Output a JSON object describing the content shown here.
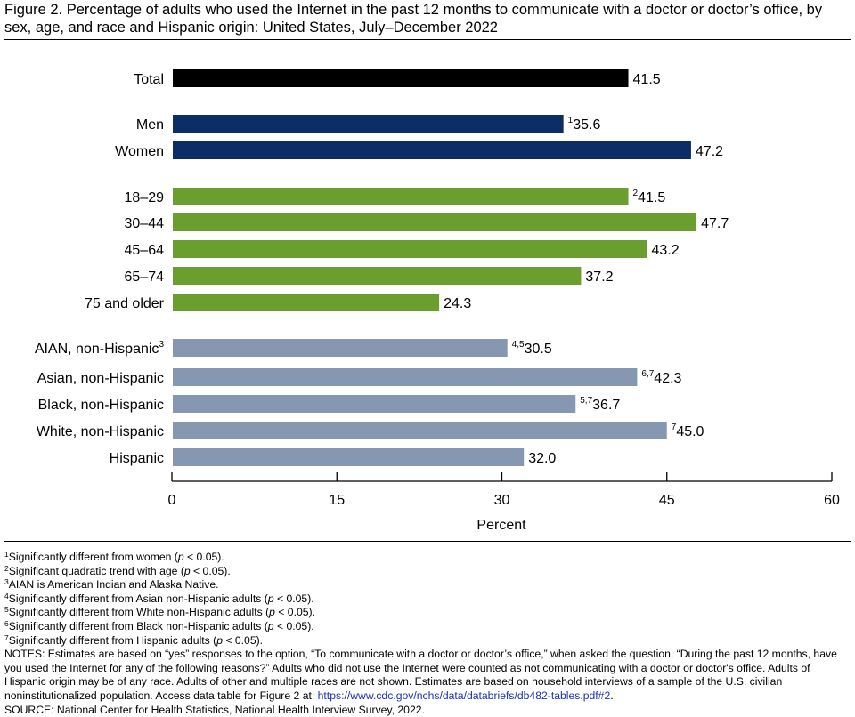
{
  "title": "Figure 2. Percentage of adults who used the Internet in the past 12 months to communicate with a doctor or doctor’s office, by sex, age, and race and Hispanic origin: United States, July–December 2022",
  "colors": {
    "total": "#000000",
    "sex": "#0d2d66",
    "age": "#6a9e2f",
    "race": "#8597b1"
  },
  "chart_data": {
    "type": "bar",
    "orientation": "horizontal",
    "xlabel": "Percent",
    "xlim": [
      0,
      60
    ],
    "xticks": [
      "0",
      "15",
      "30",
      "45",
      "60"
    ],
    "grid": false,
    "groups": [
      "total",
      "sex",
      "age",
      "race"
    ],
    "bars": [
      {
        "label": "Total",
        "label_sup": "",
        "value": 41.5,
        "value_label": "41.5",
        "value_sup": "",
        "group": "total"
      },
      {
        "label": "Men",
        "label_sup": "",
        "value": 35.6,
        "value_label": "35.6",
        "value_sup": "1",
        "group": "sex"
      },
      {
        "label": "Women",
        "label_sup": "",
        "value": 47.2,
        "value_label": "47.2",
        "value_sup": "",
        "group": "sex"
      },
      {
        "label": "18–29",
        "label_sup": "",
        "value": 41.5,
        "value_label": "41.5",
        "value_sup": "2",
        "group": "age"
      },
      {
        "label": "30–44",
        "label_sup": "",
        "value": 47.7,
        "value_label": "47.7",
        "value_sup": "",
        "group": "age"
      },
      {
        "label": "45–64",
        "label_sup": "",
        "value": 43.2,
        "value_label": "43.2",
        "value_sup": "",
        "group": "age"
      },
      {
        "label": "65–74",
        "label_sup": "",
        "value": 37.2,
        "value_label": "37.2",
        "value_sup": "",
        "group": "age"
      },
      {
        "label": "75 and older",
        "label_sup": "",
        "value": 24.3,
        "value_label": "24.3",
        "value_sup": "",
        "group": "age"
      },
      {
        "label": "AIAN, non-Hispanic",
        "label_sup": "3",
        "value": 30.5,
        "value_label": "30.5",
        "value_sup": "4,5",
        "group": "race"
      },
      {
        "label": "Asian, non-Hispanic",
        "label_sup": "",
        "value": 42.3,
        "value_label": "42.3",
        "value_sup": "6,7",
        "group": "race"
      },
      {
        "label": "Black, non-Hispanic",
        "label_sup": "",
        "value": 36.7,
        "value_label": "36.7",
        "value_sup": "5,7",
        "group": "race"
      },
      {
        "label": "White, non-Hispanic",
        "label_sup": "",
        "value": 45.0,
        "value_label": "45.0",
        "value_sup": "7",
        "group": "race"
      },
      {
        "label": "Hispanic",
        "label_sup": "",
        "value": 32.0,
        "value_label": "32.0",
        "value_sup": "",
        "group": "race"
      }
    ]
  },
  "footnotes": [
    {
      "sup": "1",
      "pre": "Significantly different from women (",
      "p": "p",
      "post": " < 0.05)."
    },
    {
      "sup": "2",
      "pre": "Significant quadratic trend with age (",
      "p": "p",
      "post": " < 0.05)."
    },
    {
      "sup": "3",
      "pre": "AIAN is American Indian and Alaska Native.",
      "p": "",
      "post": ""
    },
    {
      "sup": "4",
      "pre": "Significantly different from Asian non-Hispanic adults (",
      "p": "p",
      "post": " < 0.05)."
    },
    {
      "sup": "5",
      "pre": "Significantly different from White non-Hispanic adults (",
      "p": "p",
      "post": " < 0.05)."
    },
    {
      "sup": "6",
      "pre": "Significantly different from Black non-Hispanic adults (",
      "p": "p",
      "post": " < 0.05)."
    },
    {
      "sup": "7",
      "pre": "Significantly different from Hispanic adults (",
      "p": "p",
      "post": " < 0.05)."
    }
  ],
  "notes": {
    "text": "NOTES: Estimates are based on “yes” responses to the option, “To communicate with a doctor or doctor’s office,” when asked the question, “During the past 12 months, have you used the Internet for any of the following reasons?” Adults who did not use the Internet were counted as not communicating with a doctor or doctor's office. Adults of Hispanic origin may be of any race. Adults of other and multiple races are not shown. Estimates are based on household interviews of a sample of the U.S. civilian noninstitutionalized population. Access data table for Figure 2 at: ",
    "url": "https://www.cdc.gov/nchs/data/databriefs/db482-tables.pdf#2",
    "end": "."
  },
  "source": "SOURCE: National Center for Health Statistics, National Health Interview Survey, 2022."
}
